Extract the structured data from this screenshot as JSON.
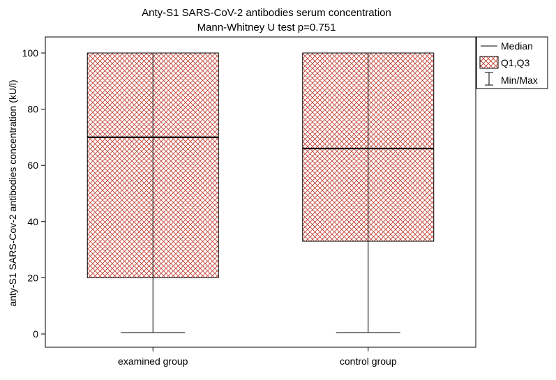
{
  "chart_data": {
    "type": "box",
    "title": "Anty-S1 SARS-CoV-2 antibodies serum concentration",
    "subtitle": "Mann-Whitney U test p=0.751",
    "xlabel": "",
    "ylabel": "anty-S1 SARS-Cov-2 antibodies concentration (kU/l)",
    "ylim": [
      0,
      100
    ],
    "yticks": [
      0,
      20,
      40,
      60,
      80,
      100
    ],
    "categories": [
      "examined group",
      "control group"
    ],
    "boxes": [
      {
        "category": "examined group",
        "min": 0.5,
        "q1": 20,
        "median": 70,
        "q3": 100,
        "max": 100
      },
      {
        "category": "control group",
        "min": 0.5,
        "q1": 33,
        "median": 66,
        "q3": 100,
        "max": 100
      }
    ],
    "legend": {
      "position": "top-right",
      "entries": [
        "Median",
        "Q1,Q3",
        "Min/Max"
      ]
    },
    "grid": false,
    "colors": {
      "box_hatch": "#c0392b",
      "median": "#000000",
      "whisker": "#000000"
    }
  }
}
